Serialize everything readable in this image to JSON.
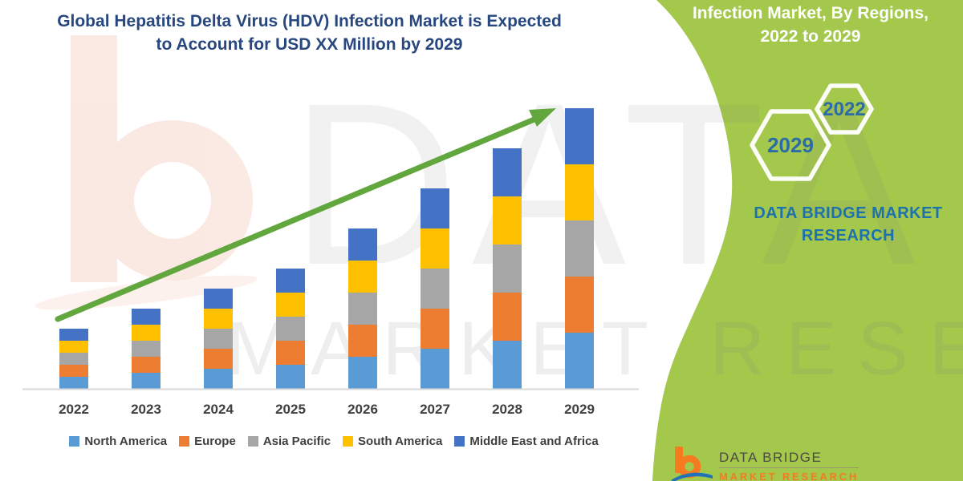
{
  "title": {
    "line1": "Global Hepatitis Delta Virus (HDV) Infection Market is Expected",
    "line2": "to Account for USD XX Million by 2029",
    "color": "#27477E"
  },
  "chart_data": {
    "type": "bar",
    "subtype": "stacked-vertical",
    "title": "Global Hepatitis Delta Virus (HDV) Infection Market",
    "xlabel": "",
    "ylabel": "",
    "axis_note": "No y-axis shown; values are relative units (market value shown as USD XX Million)",
    "categories": [
      "2022",
      "2023",
      "2024",
      "2025",
      "2026",
      "2027",
      "2028",
      "2029"
    ],
    "series": [
      {
        "name": "North America",
        "color": "#5B9BD5",
        "values": [
          0.6,
          0.8,
          1.0,
          1.2,
          1.6,
          2.0,
          2.4,
          2.8
        ]
      },
      {
        "name": "Europe",
        "color": "#ED7D31",
        "values": [
          0.6,
          0.8,
          1.0,
          1.2,
          1.6,
          2.0,
          2.4,
          2.8
        ]
      },
      {
        "name": "Asia Pacific",
        "color": "#A6A6A6",
        "values": [
          0.6,
          0.8,
          1.0,
          1.2,
          1.6,
          2.0,
          2.4,
          2.8
        ]
      },
      {
        "name": "South America",
        "color": "#FFC000",
        "values": [
          0.6,
          0.8,
          1.0,
          1.2,
          1.6,
          2.0,
          2.4,
          2.8
        ]
      },
      {
        "name": "Middle East and Africa",
        "color": "#4472C4",
        "values": [
          0.6,
          0.8,
          1.0,
          1.2,
          1.6,
          2.0,
          2.4,
          2.8
        ]
      }
    ],
    "stack_totals": [
      3.0,
      4.0,
      5.0,
      6.0,
      8.0,
      10.0,
      12.0,
      14.0
    ],
    "legend_position": "bottom",
    "grid": "off",
    "trend_arrow": {
      "present": true,
      "direction": "up-right"
    },
    "arrow_color": "#62A63E",
    "baseline_color": "#D9D9D9",
    "label_color": "#3F3F3F"
  },
  "panel": {
    "heading_line1": "Infection Market, By Regions,",
    "heading_line2": "2022 to 2029",
    "hex_small_label": "2022",
    "hex_large_label": "2029",
    "caption": "DATA BRIDGE MARKET RESEARCH",
    "colors": {
      "panel_green": "#A3C84C",
      "hex_outline": "#FDFDF8",
      "hex_number_blue": "#2B6CA8",
      "caption_blue": "#1D72AE"
    }
  },
  "watermark": {
    "big_text": "DATA BRIDGE",
    "band_text": "MARKET RESEARCH"
  },
  "footer_logo": {
    "brand": "DATA BRIDGE",
    "sub_brand": "MARKET RESEARCH",
    "b_orange": "#F47B20",
    "swoosh_blue": "#2272B8"
  }
}
